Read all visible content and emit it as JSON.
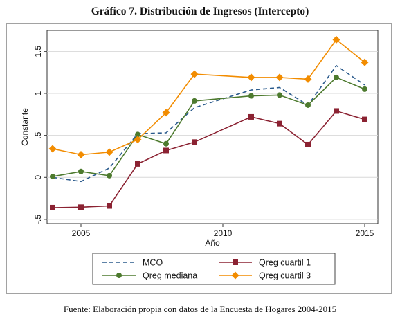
{
  "title": "Gráfico 7. Distribución de Ingresos (Intercepto)",
  "footer": "Fuente: Elaboración propia con datos de la Encuesta de Hogares 2004-2015",
  "chart_data": {
    "type": "line",
    "xlabel": "Año",
    "ylabel": "Constante",
    "xlim": [
      2004,
      2015
    ],
    "ylim": [
      -0.55,
      1.75
    ],
    "x_ticks": [
      2005,
      2010,
      2015
    ],
    "x_tick_labels": [
      "2005",
      "2010",
      "2015"
    ],
    "y_ticks": [
      -0.5,
      0,
      0.5,
      1,
      1.5
    ],
    "y_tick_labels": [
      "-.5",
      "0",
      ".5",
      "1",
      "1.5"
    ],
    "grid": true,
    "legend_position": "bottom",
    "x": [
      2004,
      2005,
      2006,
      2007,
      2008,
      2009,
      2011,
      2012,
      2013,
      2014,
      2015
    ],
    "series": [
      {
        "name": "MCO",
        "style": "dashed",
        "color": "#2a5a8c",
        "marker": "none",
        "values": [
          0.0,
          -0.05,
          0.11,
          0.52,
          0.53,
          0.83,
          1.04,
          1.07,
          0.86,
          1.33,
          1.1
        ]
      },
      {
        "name": "Qreg cuartil 1",
        "style": "solid",
        "color": "#8b2232",
        "marker": "square",
        "values": [
          -0.36,
          -0.355,
          -0.34,
          0.16,
          0.32,
          0.42,
          0.72,
          0.64,
          0.39,
          0.79,
          0.69
        ]
      },
      {
        "name": "Qreg mediana",
        "style": "solid",
        "color": "#4d7a2e",
        "marker": "circle",
        "values": [
          0.01,
          0.07,
          0.02,
          0.51,
          0.4,
          0.91,
          0.97,
          0.98,
          0.86,
          1.19,
          1.05
        ]
      },
      {
        "name": "Qreg cuartil 3",
        "style": "solid",
        "color": "#f28c00",
        "marker": "diamond",
        "values": [
          0.34,
          0.27,
          0.3,
          0.45,
          0.77,
          1.23,
          1.19,
          1.19,
          1.17,
          1.64,
          1.37
        ]
      }
    ],
    "legend_order": [
      "MCO",
      "Qreg cuartil 1",
      "Qreg mediana",
      "Qreg cuartil 3"
    ]
  }
}
